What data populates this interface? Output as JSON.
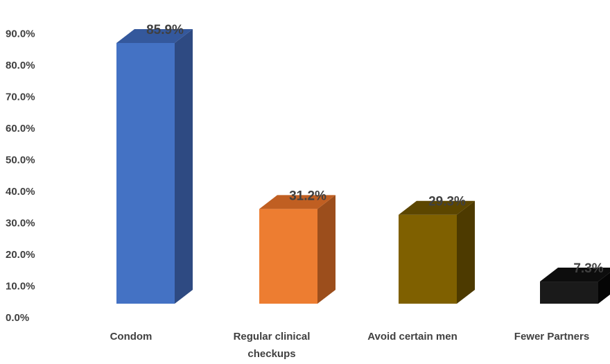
{
  "chart_data": {
    "type": "bar",
    "style": "3d-column",
    "categories": [
      [
        "Condom"
      ],
      [
        "Regular clinical",
        "checkups"
      ],
      [
        "Avoid certain men"
      ],
      [
        "Fewer Partners"
      ]
    ],
    "values": [
      85.9,
      31.2,
      29.3,
      7.3
    ],
    "data_labels": [
      "85.9%",
      "31.2%",
      "29.3%",
      "7.3%"
    ],
    "colors": {
      "front": [
        "#4472c4",
        "#ed7d31",
        "#7f6000",
        "#1a1a1a"
      ],
      "side": [
        "#2e4a82",
        "#9c4e1c",
        "#4d3a00",
        "#050505"
      ],
      "top": [
        "#34589c",
        "#c05f22",
        "#5c4600",
        "#0d0d0d"
      ]
    },
    "y_ticks": [
      "0.0%",
      "10.0%",
      "20.0%",
      "30.0%",
      "40.0%",
      "50.0%",
      "60.0%",
      "70.0%",
      "80.0%",
      "90.0%"
    ],
    "ylim": [
      0,
      90
    ],
    "grid": false,
    "legend": "none",
    "title": "",
    "xlabel": "",
    "ylabel": ""
  }
}
